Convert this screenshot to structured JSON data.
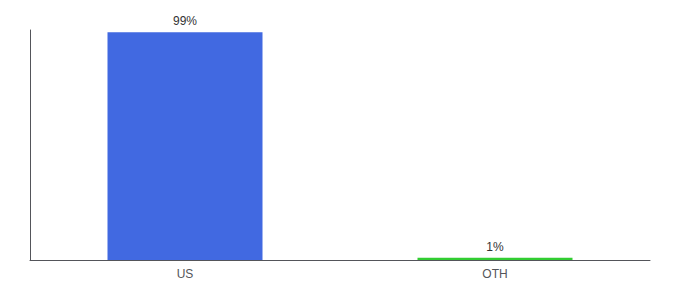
{
  "chart_data": {
    "type": "bar",
    "categories": [
      "US",
      "OTH"
    ],
    "values": [
      99,
      1
    ],
    "value_labels": [
      "99%",
      "1%"
    ],
    "colors": [
      "#4169e1",
      "#32cd32"
    ],
    "data_labels": true,
    "ylim": [
      0,
      100
    ],
    "yticks": [],
    "tick_labels": "x",
    "grid": false
  }
}
